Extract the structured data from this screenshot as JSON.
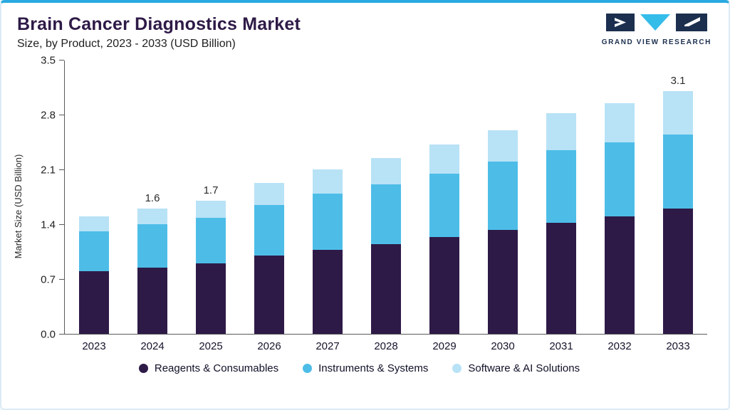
{
  "header": {
    "title": "Brain Cancer Diagnostics Market",
    "subtitle": "Size, by Product, 2023 - 2033 (USD Billion)",
    "logo_text": "GRAND VIEW RESEARCH"
  },
  "colors": {
    "accent_line": "#2aa9e0",
    "title": "#2e1a47",
    "logo_navy": "#1c2f4e",
    "logo_cyan": "#35bdea"
  },
  "chart_data": {
    "type": "bar",
    "stacked": true,
    "title": "Brain Cancer Diagnostics Market Size, by Product, 2023 - 2033 (USD Billion)",
    "xlabel": "",
    "ylabel": "Market Size (USD Billion)",
    "ylim": [
      0,
      3.5
    ],
    "yticks": [
      0.0,
      0.7,
      1.4,
      2.1,
      2.8,
      3.5
    ],
    "grid": false,
    "legend_position": "bottom",
    "categories": [
      "2023",
      "2024",
      "2025",
      "2026",
      "2027",
      "2028",
      "2029",
      "2030",
      "2031",
      "2032",
      "2033"
    ],
    "series": [
      {
        "name": "Reagents & Consumables",
        "color": "#2e1a47",
        "values": [
          0.8,
          0.85,
          0.9,
          1.0,
          1.07,
          1.15,
          1.24,
          1.33,
          1.42,
          1.5,
          1.6
        ]
      },
      {
        "name": "Instruments & Systems",
        "color": "#4dbde8",
        "values": [
          0.51,
          0.55,
          0.58,
          0.65,
          0.72,
          0.76,
          0.81,
          0.87,
          0.93,
          0.95,
          0.95
        ]
      },
      {
        "name": "Software & AI Solutions",
        "color": "#b8e2f6",
        "values": [
          0.19,
          0.2,
          0.22,
          0.28,
          0.31,
          0.34,
          0.37,
          0.4,
          0.47,
          0.5,
          0.55
        ]
      }
    ],
    "bar_labels": [
      "",
      "1.6",
      "1.7",
      "",
      "",
      "",
      "",
      "",
      "",
      "",
      "3.1"
    ],
    "totals": [
      1.5,
      1.6,
      1.7,
      1.93,
      2.1,
      2.25,
      2.42,
      2.6,
      2.82,
      2.95,
      3.1
    ]
  }
}
